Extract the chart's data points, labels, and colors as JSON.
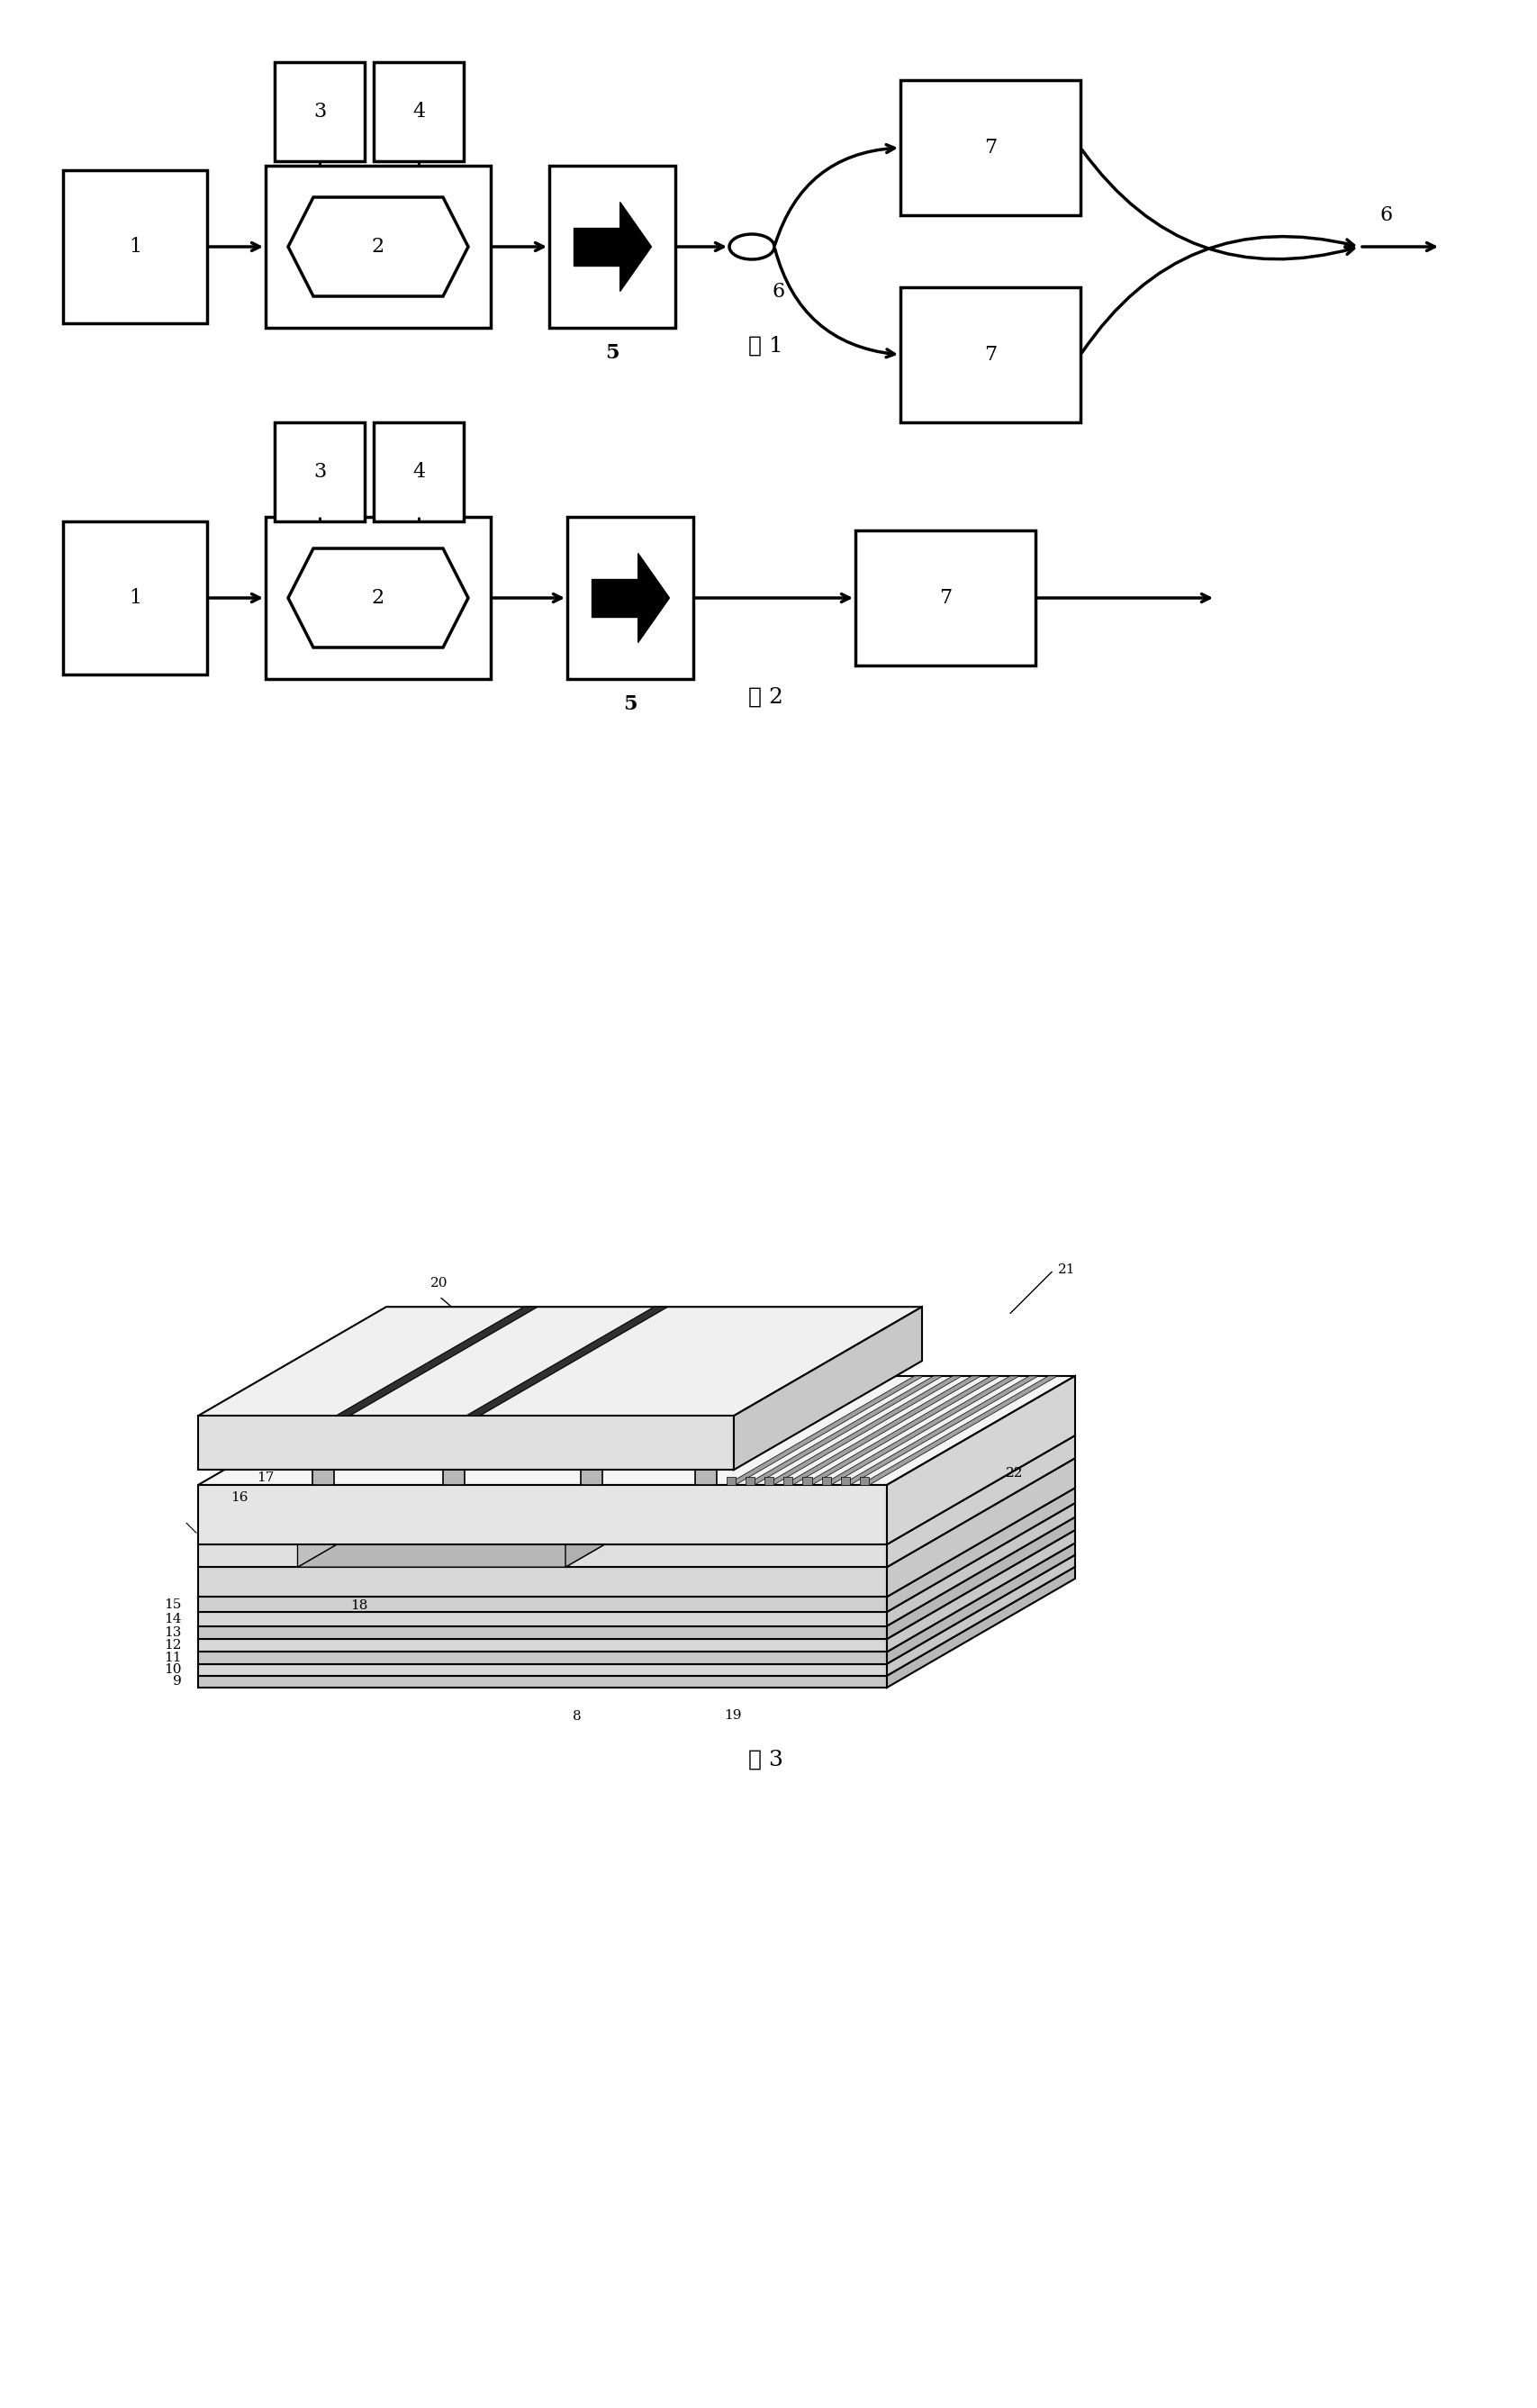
{
  "fig_width": 17.08,
  "fig_height": 26.74,
  "bg_color": "#ffffff",
  "fig1_caption": "图 1",
  "fig2_caption": "图 2",
  "fig3_caption": "图 3",
  "lw": 2.0,
  "lw_thick": 2.5,
  "fs_label": 16,
  "fs_caption": 18,
  "fs_num": 12
}
